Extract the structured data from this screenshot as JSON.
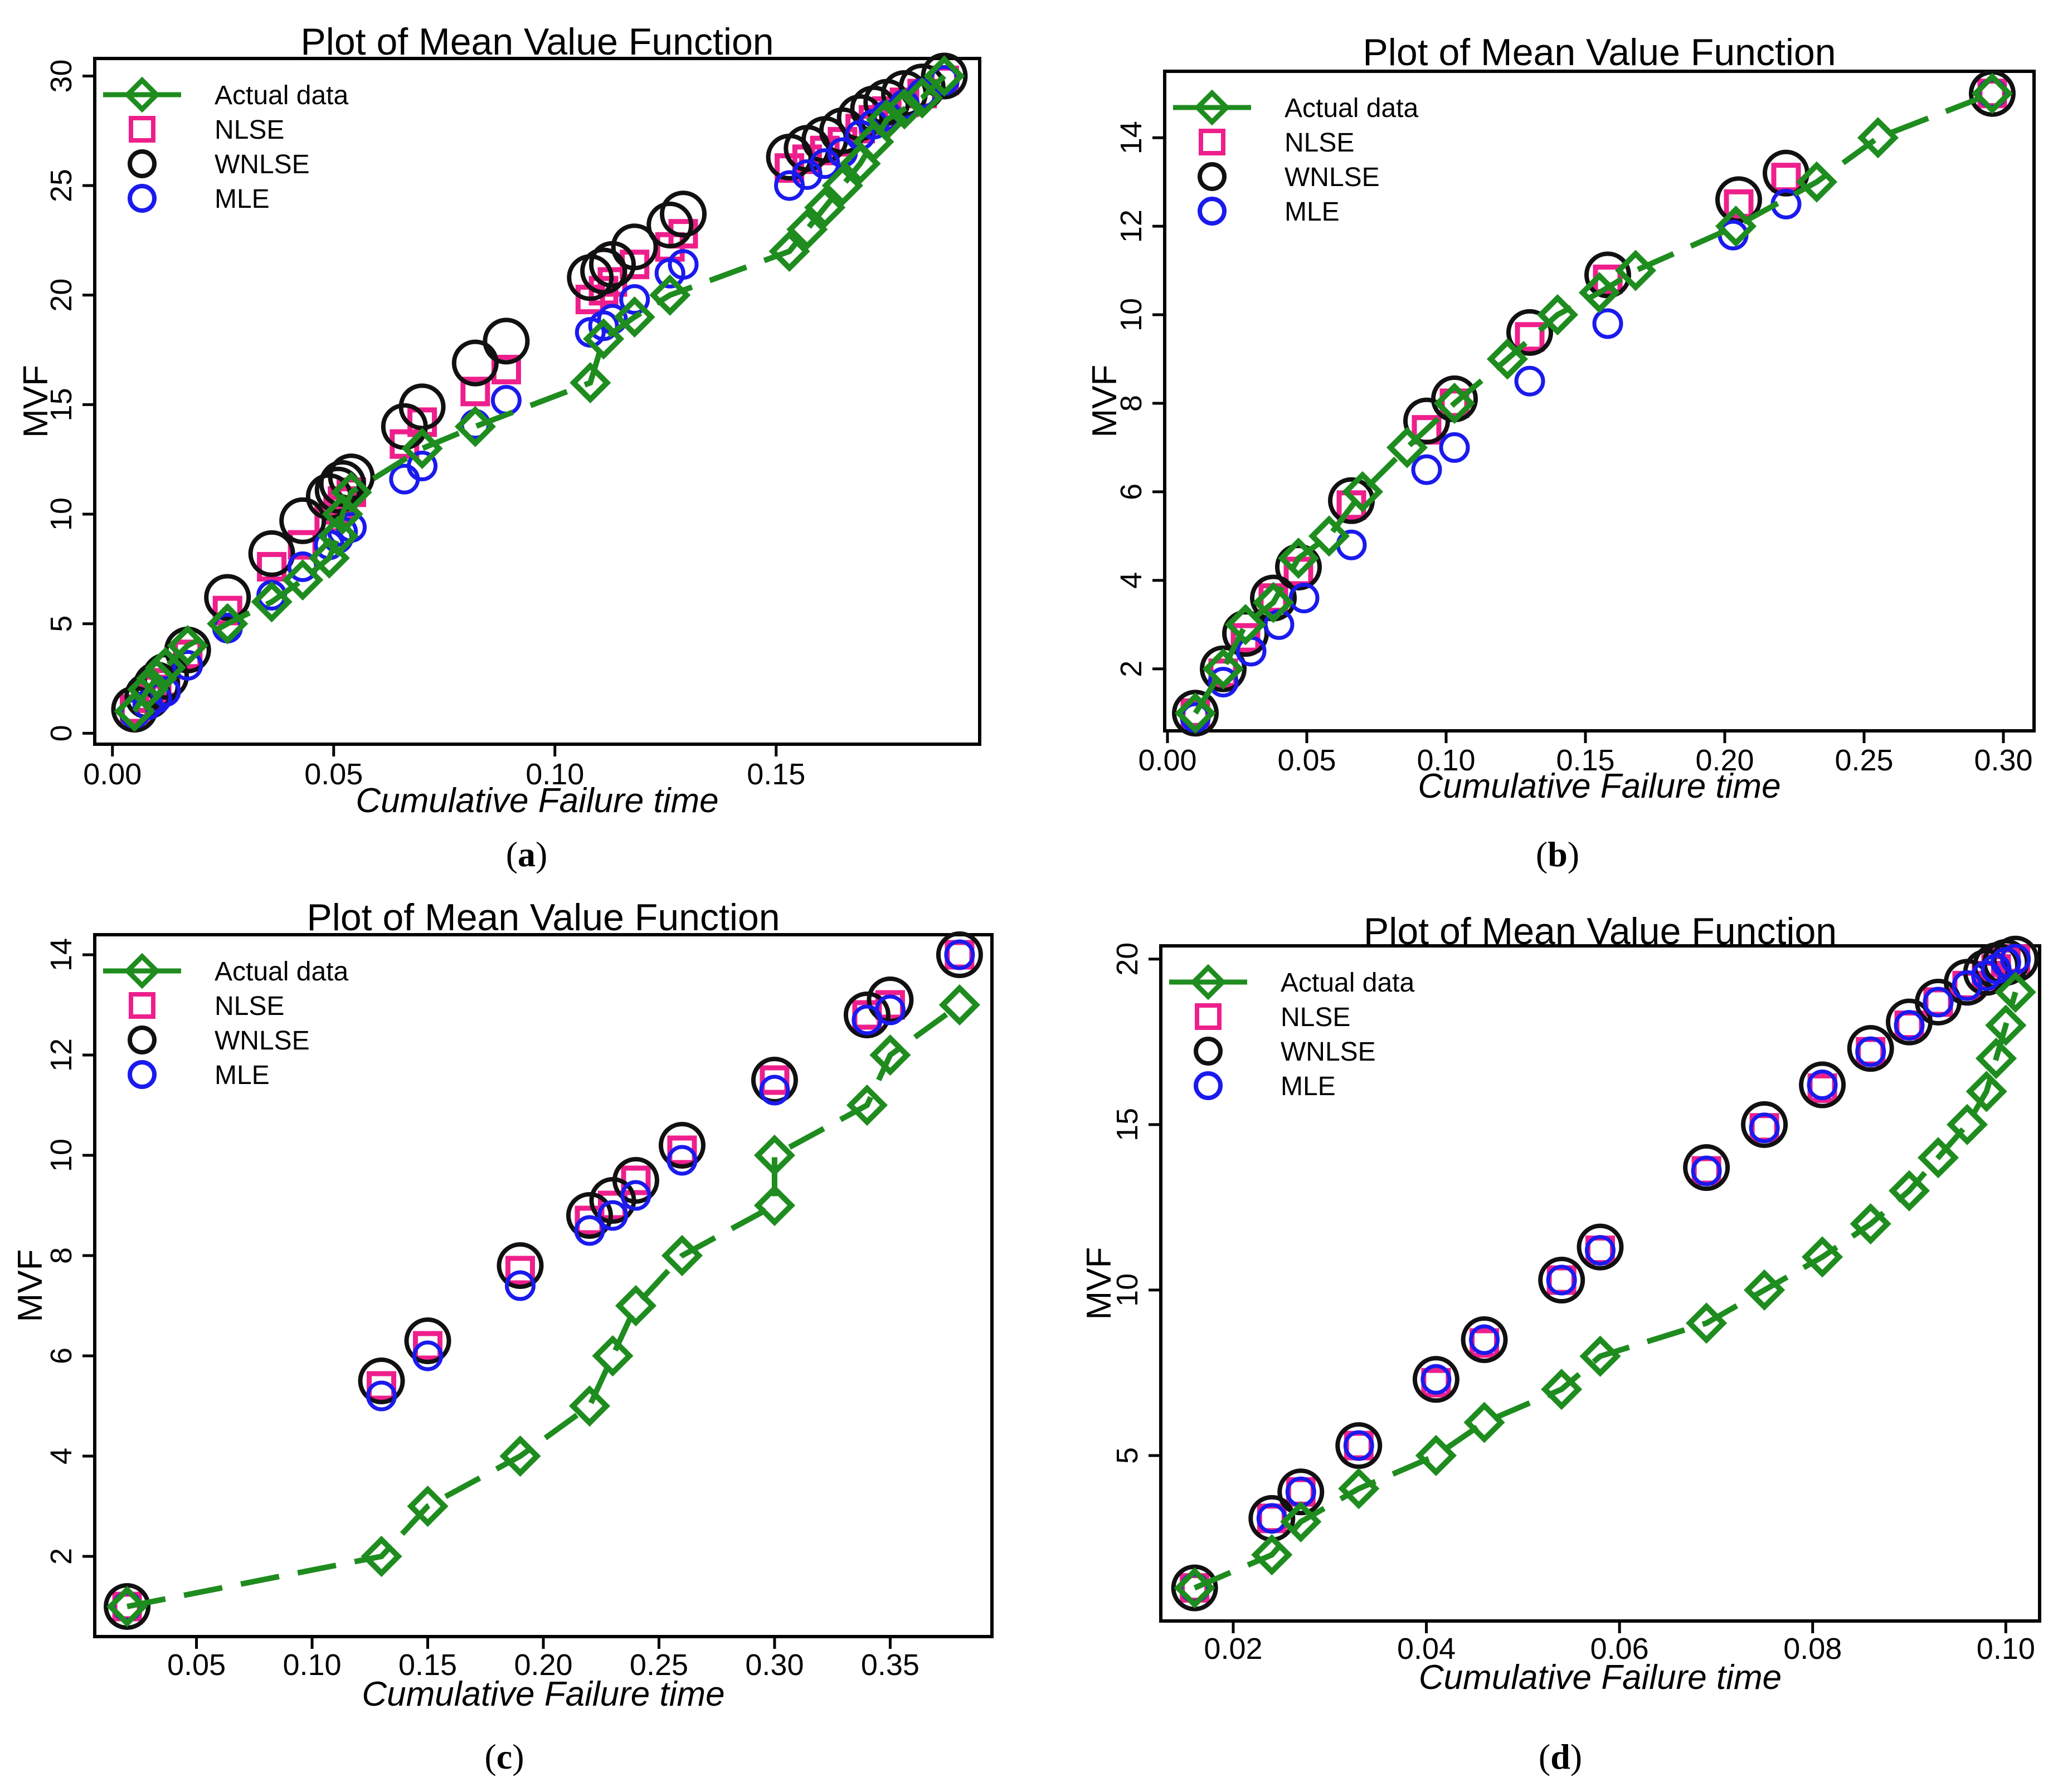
{
  "colors": {
    "actual": "#1e8c1e",
    "nlse": "#ee1f8c",
    "wnlse": "#111111",
    "mle": "#1a1aee"
  },
  "legend": [
    {
      "key": "actual",
      "label": "Actual data"
    },
    {
      "key": "nlse",
      "label": "NLSE"
    },
    {
      "key": "wnlse",
      "label": "WNLSE"
    },
    {
      "key": "mle",
      "label": "MLE"
    }
  ],
  "chart_data": [
    {
      "panel": "a",
      "type": "line",
      "title": "Plot of Mean Value Function",
      "xlabel": "Cumulative Failure time",
      "ylabel": "MVF",
      "xlim": [
        -0.004,
        0.196
      ],
      "ylim": [
        -0.5,
        30.8
      ],
      "xticks": [
        0.0,
        0.05,
        0.1,
        0.15
      ],
      "xtick_labels": [
        "0.00",
        "0.05",
        "0.10",
        "0.15"
      ],
      "yticks": [
        0,
        5,
        10,
        15,
        20,
        25,
        30
      ],
      "ytick_labels": [
        "0",
        "5",
        "10",
        "15",
        "20",
        "25",
        "30"
      ],
      "legend_position": "top-left",
      "series": [
        {
          "name": "Actual data",
          "key": "actual",
          "x": [
            0.005,
            0.008,
            0.01,
            0.012,
            0.017,
            0.026,
            0.036,
            0.043,
            0.049,
            0.051,
            0.052,
            0.054,
            0.07,
            0.082,
            0.108,
            0.111,
            0.118,
            0.126,
            0.153,
            0.157,
            0.161,
            0.165,
            0.169,
            0.172,
            0.175,
            0.179,
            0.183,
            0.188
          ],
          "y": [
            1,
            2,
            2.5,
            3,
            4,
            5,
            6,
            7,
            8,
            9,
            10,
            11,
            13,
            14,
            16,
            18,
            19,
            20,
            22,
            23,
            24,
            25,
            26,
            27,
            28,
            28.5,
            29,
            30
          ]
        },
        {
          "name": "NLSE",
          "key": "nlse",
          "x": [
            0.005,
            0.008,
            0.01,
            0.012,
            0.017,
            0.026,
            0.036,
            0.043,
            0.049,
            0.051,
            0.052,
            0.054,
            0.066,
            0.07,
            0.082,
            0.089,
            0.108,
            0.111,
            0.113,
            0.118,
            0.126,
            0.129,
            0.153,
            0.157,
            0.161,
            0.165,
            0.169,
            0.172,
            0.175,
            0.179,
            0.183,
            0.188
          ],
          "y": [
            1.1,
            1.6,
            2.0,
            2.3,
            3.6,
            5.6,
            7.6,
            8.6,
            9.8,
            10.2,
            10.6,
            11.0,
            13.2,
            14.2,
            15.6,
            16.6,
            19.8,
            20.2,
            20.6,
            21.4,
            22.2,
            22.8,
            25.8,
            26.2,
            26.6,
            27.0,
            27.6,
            28.0,
            28.4,
            28.8,
            29.2,
            29.8
          ]
        },
        {
          "name": "WNLSE",
          "key": "wnlse",
          "x": [
            0.005,
            0.008,
            0.01,
            0.012,
            0.017,
            0.026,
            0.036,
            0.043,
            0.049,
            0.051,
            0.052,
            0.054,
            0.066,
            0.07,
            0.082,
            0.089,
            0.108,
            0.111,
            0.113,
            0.118,
            0.126,
            0.129,
            0.153,
            0.157,
            0.161,
            0.165,
            0.169,
            0.172,
            0.175,
            0.179,
            0.183,
            0.188
          ],
          "y": [
            1.1,
            1.7,
            2.2,
            2.6,
            3.8,
            6.2,
            8.2,
            9.7,
            10.8,
            11.1,
            11.4,
            11.7,
            14.0,
            14.9,
            16.9,
            17.9,
            20.8,
            21.1,
            21.4,
            22.2,
            23.2,
            23.7,
            26.3,
            26.7,
            27.1,
            27.5,
            28.1,
            28.5,
            28.8,
            29.2,
            29.5,
            30.0
          ]
        },
        {
          "name": "MLE",
          "key": "mle",
          "x": [
            0.005,
            0.008,
            0.01,
            0.012,
            0.017,
            0.026,
            0.036,
            0.043,
            0.049,
            0.051,
            0.052,
            0.054,
            0.066,
            0.07,
            0.082,
            0.089,
            0.108,
            0.111,
            0.113,
            0.118,
            0.126,
            0.129,
            0.153,
            0.157,
            0.161,
            0.165,
            0.169,
            0.172,
            0.175,
            0.179,
            0.183,
            0.188
          ],
          "y": [
            0.9,
            1.3,
            1.6,
            1.9,
            3.1,
            4.8,
            6.3,
            7.6,
            8.6,
            8.9,
            9.2,
            9.4,
            11.6,
            12.2,
            14.1,
            15.2,
            18.3,
            18.6,
            18.9,
            19.8,
            21.0,
            21.4,
            25.0,
            25.5,
            26.0,
            26.5,
            27.3,
            27.8,
            28.2,
            28.7,
            29.2,
            29.8
          ]
        }
      ]
    },
    {
      "panel": "b",
      "type": "line",
      "title": "Plot of Mean Value Function",
      "xlabel": "Cumulative Failure time",
      "ylabel": "MVF",
      "xlim": [
        -0.001,
        0.311
      ],
      "ylim": [
        0.6,
        15.5
      ],
      "xticks": [
        0.0,
        0.05,
        0.1,
        0.15,
        0.2,
        0.25,
        0.3
      ],
      "xtick_labels": [
        "0.00",
        "0.05",
        "0.10",
        "0.15",
        "0.20",
        "0.25",
        "0.30"
      ],
      "yticks": [
        2,
        4,
        6,
        8,
        10,
        12,
        14
      ],
      "ytick_labels": [
        "2",
        "4",
        "6",
        "8",
        "10",
        "12",
        "14"
      ],
      "legend_position": "top-left",
      "series": [
        {
          "name": "Actual data",
          "key": "actual",
          "x": [
            0.01,
            0.02,
            0.028,
            0.038,
            0.047,
            0.058,
            0.07,
            0.086,
            0.103,
            0.122,
            0.14,
            0.155,
            0.168,
            0.204,
            0.233,
            0.255,
            0.296
          ],
          "y": [
            1,
            2,
            3,
            3.5,
            4.5,
            5,
            6,
            7,
            8,
            9,
            10,
            10.5,
            11,
            12,
            13,
            14,
            15
          ]
        },
        {
          "name": "NLSE",
          "key": "nlse",
          "x": [
            0.01,
            0.02,
            0.028,
            0.038,
            0.047,
            0.066,
            0.093,
            0.103,
            0.13,
            0.158,
            0.205,
            0.222,
            0.296
          ],
          "y": [
            1.0,
            1.9,
            2.7,
            3.6,
            4.2,
            5.7,
            7.4,
            8.0,
            9.5,
            10.8,
            12.5,
            13.1,
            15.0
          ]
        },
        {
          "name": "WNLSE",
          "key": "wnlse",
          "x": [
            0.01,
            0.02,
            0.028,
            0.038,
            0.047,
            0.066,
            0.093,
            0.103,
            0.13,
            0.158,
            0.205,
            0.222,
            0.296
          ],
          "y": [
            1.0,
            2.0,
            2.8,
            3.6,
            4.3,
            5.8,
            7.6,
            8.1,
            9.6,
            10.9,
            12.6,
            13.2,
            15.0
          ]
        },
        {
          "name": "MLE",
          "key": "mle",
          "x": [
            0.01,
            0.02,
            0.03,
            0.04,
            0.049,
            0.066,
            0.093,
            0.103,
            0.13,
            0.158,
            0.203,
            0.222,
            0.296
          ],
          "y": [
            0.9,
            1.7,
            2.4,
            3.0,
            3.6,
            4.8,
            6.5,
            7.0,
            8.5,
            9.8,
            11.8,
            12.5,
            15.0
          ]
        }
      ]
    },
    {
      "panel": "c",
      "type": "line",
      "title": "Plot of Mean Value Function",
      "xlabel": "Cumulative Failure time",
      "ylabel": "MVF",
      "xlim": [
        0.006,
        0.394
      ],
      "ylim": [
        0.4,
        14.4
      ],
      "xticks": [
        0.05,
        0.1,
        0.15,
        0.2,
        0.25,
        0.3,
        0.35
      ],
      "xtick_labels": [
        "0.05",
        "0.10",
        "0.15",
        "0.20",
        "0.25",
        "0.30",
        "0.35"
      ],
      "yticks": [
        2,
        4,
        6,
        8,
        10,
        12,
        14
      ],
      "ytick_labels": [
        "2",
        "4",
        "6",
        "8",
        "10",
        "12",
        "14"
      ],
      "legend_position": "top-left",
      "series": [
        {
          "name": "Actual data",
          "key": "actual",
          "x": [
            0.02,
            0.13,
            0.15,
            0.19,
            0.22,
            0.23,
            0.24,
            0.26,
            0.3,
            0.3,
            0.34,
            0.35,
            0.38
          ],
          "y": [
            1,
            2,
            3,
            4,
            5,
            6,
            7,
            8,
            9,
            10,
            11,
            12,
            13
          ]
        },
        {
          "name": "NLSE",
          "key": "nlse",
          "x": [
            0.02,
            0.13,
            0.15,
            0.19,
            0.22,
            0.23,
            0.24,
            0.26,
            0.3,
            0.34,
            0.35,
            0.38
          ],
          "y": [
            1.0,
            5.4,
            6.2,
            7.7,
            8.7,
            9.0,
            9.5,
            10.1,
            11.5,
            12.8,
            13.0,
            14.0
          ]
        },
        {
          "name": "WNLSE",
          "key": "wnlse",
          "x": [
            0.02,
            0.13,
            0.15,
            0.19,
            0.22,
            0.23,
            0.24,
            0.26,
            0.3,
            0.34,
            0.35,
            0.38
          ],
          "y": [
            1.0,
            5.5,
            6.3,
            7.8,
            8.8,
            9.1,
            9.5,
            10.2,
            11.5,
            12.8,
            13.1,
            14.0
          ]
        },
        {
          "name": "MLE",
          "key": "mle",
          "x": [
            0.02,
            0.13,
            0.15,
            0.19,
            0.22,
            0.23,
            0.24,
            0.26,
            0.3,
            0.34,
            0.35,
            0.38
          ],
          "y": [
            1.0,
            5.2,
            6.0,
            7.4,
            8.5,
            8.8,
            9.2,
            9.9,
            11.3,
            12.7,
            12.9,
            14.0
          ]
        }
      ]
    },
    {
      "panel": "d",
      "type": "line",
      "title": "Plot of Mean Value Function",
      "xlabel": "Cumulative Failure time",
      "ylabel": "MVF",
      "xlim": [
        0.0125,
        0.1035
      ],
      "ylim": [
        0.0,
        20.4
      ],
      "xticks": [
        0.02,
        0.04,
        0.06,
        0.08,
        0.1
      ],
      "xtick_labels": [
        "0.02",
        "0.04",
        "0.06",
        "0.08",
        "0.10"
      ],
      "yticks": [
        5,
        10,
        15,
        20
      ],
      "ytick_labels": [
        "5",
        "10",
        "15",
        "20"
      ],
      "legend_position": "top-left",
      "series": [
        {
          "name": "Actual data",
          "key": "actual",
          "x": [
            0.016,
            0.024,
            0.027,
            0.033,
            0.041,
            0.046,
            0.054,
            0.058,
            0.069,
            0.075,
            0.081,
            0.086,
            0.09,
            0.093,
            0.096,
            0.098,
            0.099,
            0.1,
            0.101
          ],
          "y": [
            1,
            2,
            3,
            4,
            5,
            6,
            7,
            8,
            9,
            10,
            11,
            12,
            13,
            14,
            15,
            16,
            17,
            18,
            19
          ]
        },
        {
          "name": "NLSE",
          "key": "nlse",
          "x": [
            0.016,
            0.024,
            0.027,
            0.033,
            0.041,
            0.046,
            0.054,
            0.058,
            0.069,
            0.075,
            0.081,
            0.086,
            0.09,
            0.093,
            0.096,
            0.098,
            0.099,
            0.1,
            0.101
          ],
          "y": [
            1.0,
            3.1,
            3.9,
            5.3,
            7.2,
            8.4,
            10.3,
            11.2,
            13.6,
            14.9,
            16.1,
            17.2,
            18.0,
            18.7,
            19.2,
            19.5,
            19.7,
            19.9,
            20.0
          ]
        },
        {
          "name": "WNLSE",
          "key": "wnlse",
          "x": [
            0.016,
            0.024,
            0.027,
            0.033,
            0.041,
            0.046,
            0.054,
            0.058,
            0.069,
            0.075,
            0.081,
            0.086,
            0.09,
            0.093,
            0.096,
            0.098,
            0.099,
            0.1,
            0.101
          ],
          "y": [
            1.0,
            3.1,
            3.9,
            5.3,
            7.3,
            8.5,
            10.3,
            11.3,
            13.7,
            15.0,
            16.2,
            17.3,
            18.1,
            18.7,
            19.3,
            19.6,
            19.8,
            19.9,
            20.0
          ]
        },
        {
          "name": "MLE",
          "key": "mle",
          "x": [
            0.016,
            0.024,
            0.027,
            0.033,
            0.041,
            0.046,
            0.054,
            0.058,
            0.069,
            0.075,
            0.081,
            0.086,
            0.09,
            0.093,
            0.096,
            0.098,
            0.099,
            0.1,
            0.101
          ],
          "y": [
            1.0,
            3.1,
            3.9,
            5.3,
            7.3,
            8.5,
            10.3,
            11.2,
            13.6,
            14.9,
            16.2,
            17.2,
            18.0,
            18.7,
            19.2,
            19.5,
            19.7,
            19.9,
            20.0
          ]
        }
      ]
    }
  ],
  "panel_labels": [
    {
      "open": "(",
      "letter": "a",
      "close": ")"
    },
    {
      "open": "(",
      "letter": "b",
      "close": ")"
    },
    {
      "open": "(",
      "letter": "c",
      "close": ")"
    },
    {
      "open": "(",
      "letter": "d",
      "close": ")"
    }
  ]
}
